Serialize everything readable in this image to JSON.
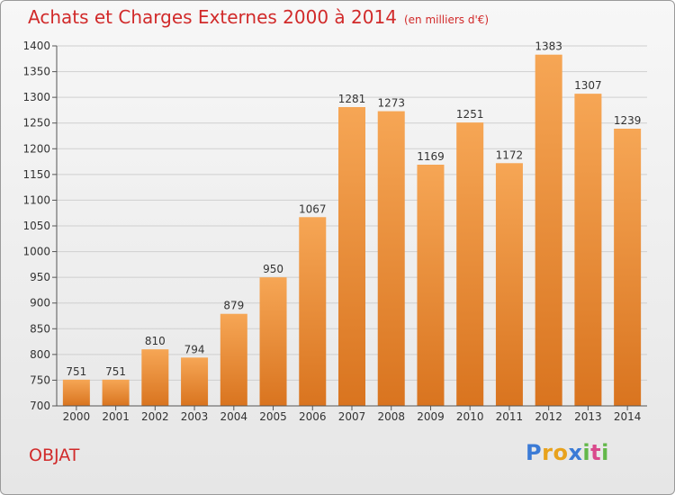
{
  "header": {
    "title": "Achats et Charges Externes 2000 à 2014",
    "subtitle": "(en milliers d'€)"
  },
  "location": "OBJAT",
  "brand": {
    "name": "Proxiti",
    "letters": [
      "P",
      "r",
      "o",
      "x",
      "i",
      "t",
      "i"
    ],
    "letter_colors": [
      "#3b7bd6",
      "#e8a21c",
      "#e8a21c",
      "#3b7bd6",
      "#63b84a",
      "#d94a8c",
      "#63b84a"
    ]
  },
  "colors": {
    "title": "#d12a2a",
    "bar_top": "#f6a655",
    "bar_bottom": "#d9741f"
  },
  "chart_data": {
    "type": "bar",
    "categories": [
      "2000",
      "2001",
      "2002",
      "2003",
      "2004",
      "2005",
      "2006",
      "2007",
      "2008",
      "2009",
      "2010",
      "2011",
      "2012",
      "2013",
      "2014"
    ],
    "values": [
      751,
      751,
      810,
      794,
      879,
      950,
      1067,
      1281,
      1273,
      1169,
      1251,
      1172,
      1383,
      1307,
      1239
    ],
    "data_labels": [
      "751",
      "751",
      "810",
      "794",
      "879",
      "950",
      "1067",
      "1281",
      "1273",
      "1169",
      "1251",
      "1172",
      "1383",
      "1307",
      "1239"
    ],
    "ylim": [
      700,
      1400
    ],
    "yticks": [
      700,
      750,
      800,
      850,
      900,
      950,
      1000,
      1050,
      1100,
      1150,
      1200,
      1250,
      1300,
      1350,
      1400
    ],
    "grid": true
  }
}
